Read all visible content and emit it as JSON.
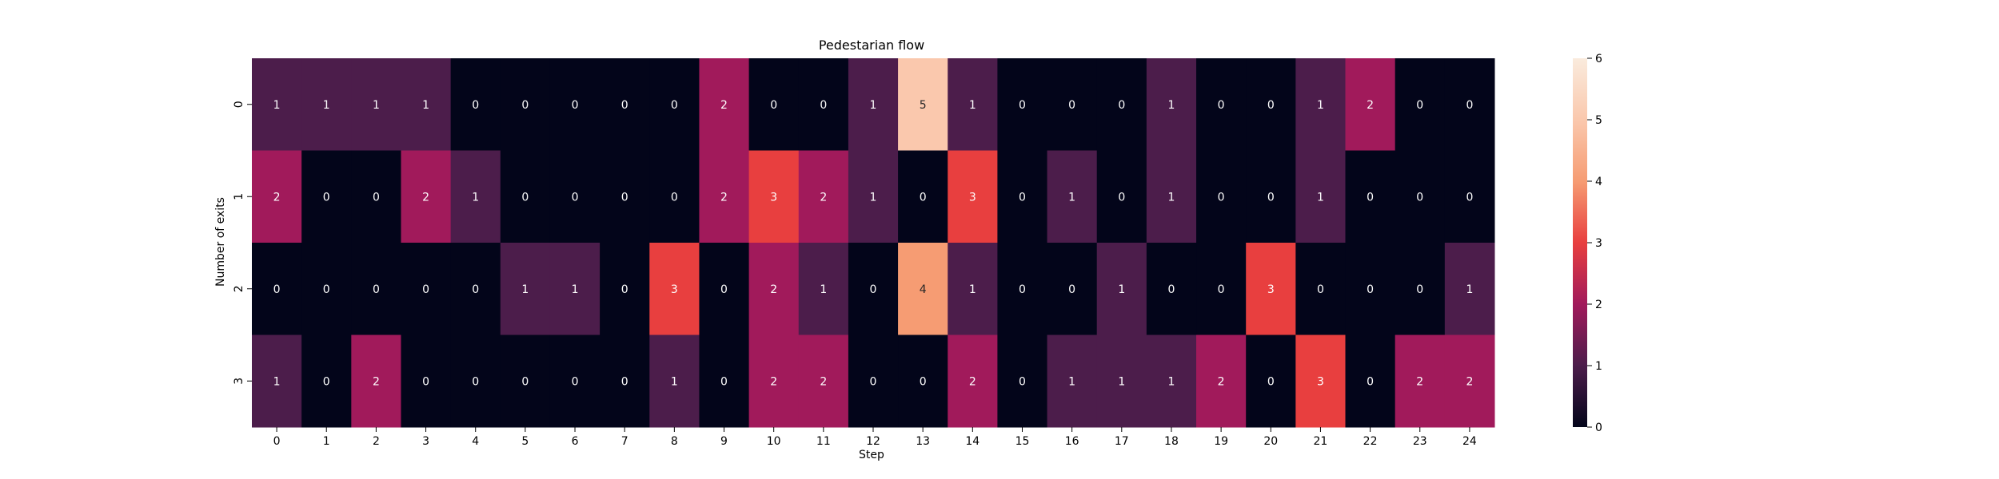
{
  "chart_data": {
    "type": "heatmap",
    "title": "Pedestarian flow",
    "xlabel": "Step",
    "ylabel": "Number of exits",
    "x_categories": [
      "0",
      "1",
      "2",
      "3",
      "4",
      "5",
      "6",
      "7",
      "8",
      "9",
      "10",
      "11",
      "12",
      "13",
      "14",
      "15",
      "16",
      "17",
      "18",
      "19",
      "20",
      "21",
      "22",
      "23",
      "24"
    ],
    "y_categories": [
      "0",
      "1",
      "2",
      "3"
    ],
    "values": [
      [
        1,
        1,
        1,
        1,
        0,
        0,
        0,
        0,
        0,
        2,
        0,
        0,
        1,
        5,
        1,
        0,
        0,
        0,
        1,
        0,
        0,
        1,
        2,
        0,
        0
      ],
      [
        2,
        0,
        0,
        2,
        1,
        0,
        0,
        0,
        0,
        2,
        3,
        2,
        1,
        0,
        3,
        0,
        1,
        0,
        1,
        0,
        0,
        1,
        0,
        0,
        0
      ],
      [
        0,
        0,
        0,
        0,
        0,
        1,
        1,
        0,
        3,
        0,
        2,
        1,
        0,
        4,
        1,
        0,
        0,
        1,
        0,
        0,
        3,
        0,
        0,
        0,
        1
      ],
      [
        1,
        0,
        2,
        0,
        0,
        0,
        0,
        0,
        1,
        0,
        2,
        2,
        0,
        0,
        2,
        0,
        1,
        1,
        1,
        2,
        0,
        3,
        0,
        2,
        2
      ]
    ],
    "color_range": [
      0,
      6
    ],
    "colorbar_ticks": [
      "0",
      "1",
      "2",
      "3",
      "4",
      "5",
      "6"
    ],
    "colormap": "rocket",
    "grid": false,
    "legend": "colorbar-right"
  }
}
